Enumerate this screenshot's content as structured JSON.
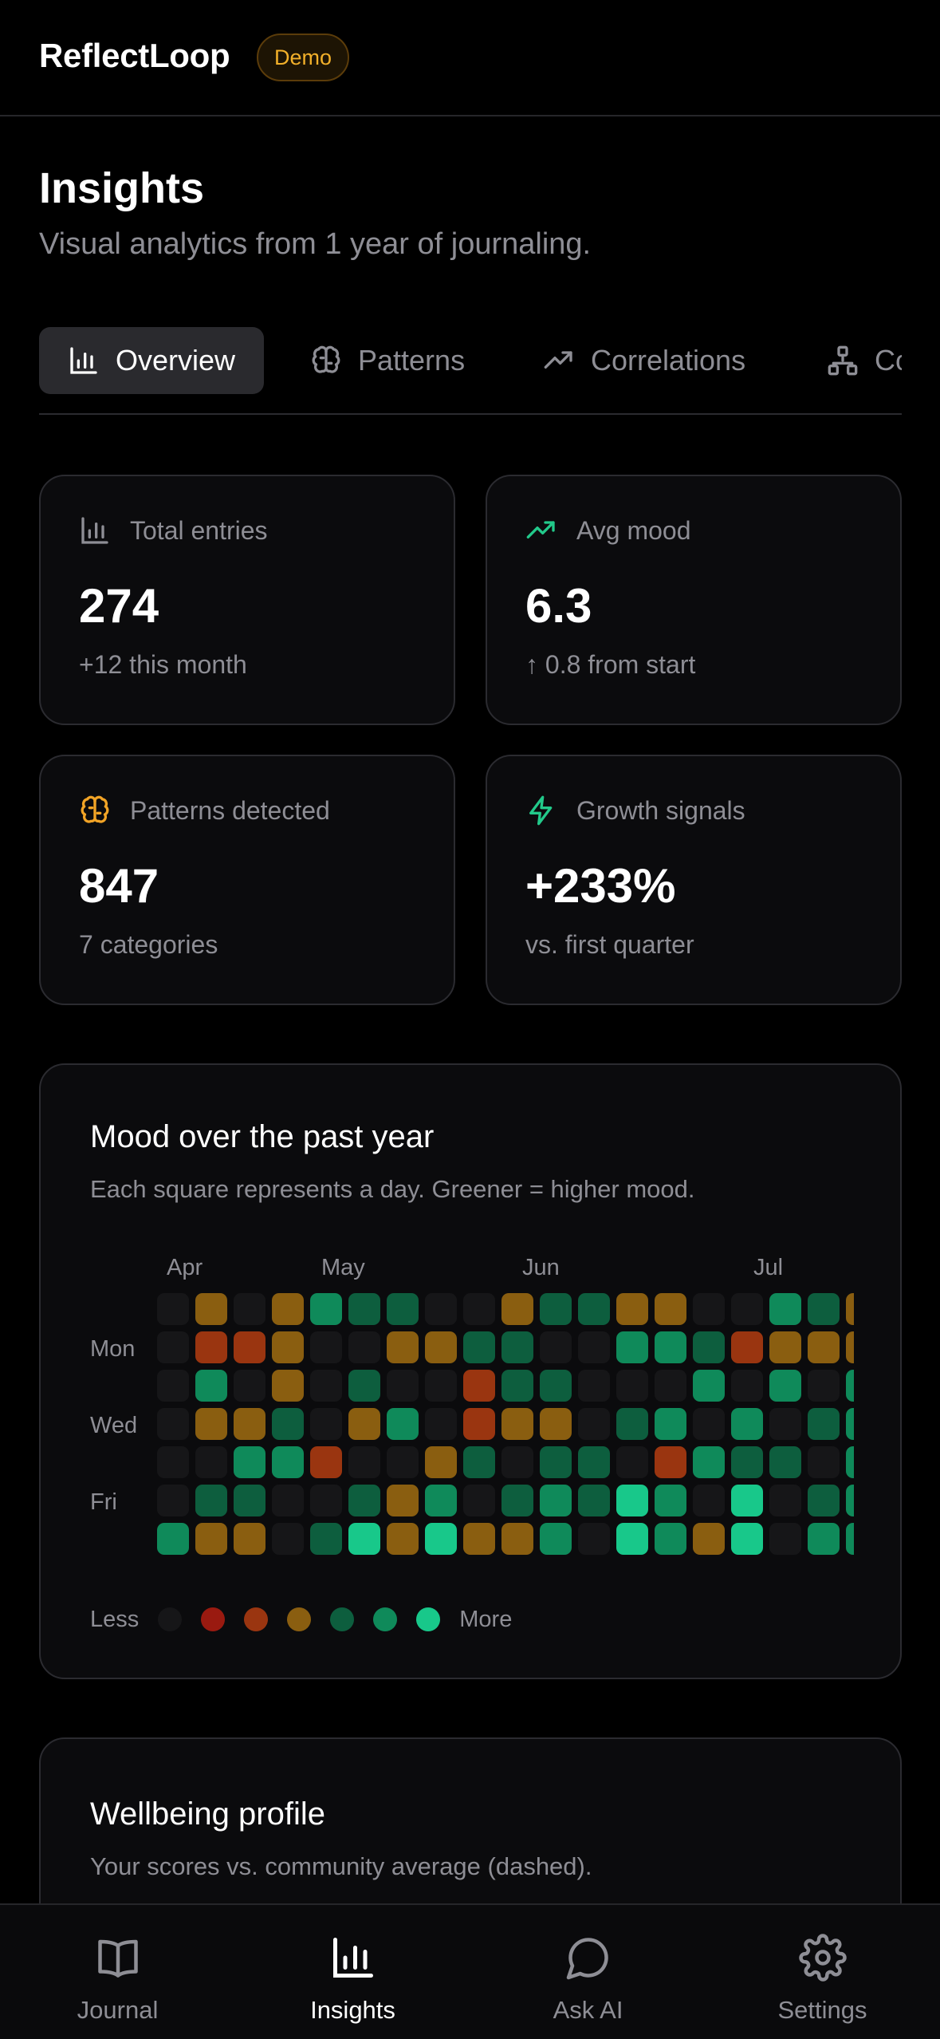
{
  "app": {
    "name": "ReflectLoop",
    "badge": "Demo"
  },
  "page": {
    "title": "Insights",
    "subtitle": "Visual analytics from 1 year of journaling."
  },
  "tabs": [
    {
      "label": "Overview",
      "icon": "bar-chart-icon",
      "active": true
    },
    {
      "label": "Patterns",
      "icon": "brain-icon",
      "active": false
    },
    {
      "label": "Correlations",
      "icon": "trending-up-icon",
      "active": false
    },
    {
      "label": "Co",
      "icon": "network-icon",
      "active": false
    }
  ],
  "stats": [
    {
      "label": "Total entries",
      "icon": "bar-chart-icon",
      "icon_color": "#8e8e95",
      "value": "274",
      "sub": "+12 this month"
    },
    {
      "label": "Avg mood",
      "icon": "trending-up-icon",
      "icon_color": "#22c98a",
      "value": "6.3",
      "sub": "↑ 0.8 from start"
    },
    {
      "label": "Patterns detected",
      "icon": "brain-icon",
      "icon_color": "#f2a426",
      "value": "847",
      "sub": "7 categories"
    },
    {
      "label": "Growth signals",
      "icon": "lightning-icon",
      "icon_color": "#22c98a",
      "value": "+233%",
      "sub": "vs. first quarter"
    }
  ],
  "heatmap": {
    "title": "Mood over the past year",
    "description": "Each square represents a day. Greener = higher mood.",
    "months": [
      "Apr",
      "May",
      "Jun",
      "Jul"
    ],
    "day_labels": [
      "Mon",
      "Wed",
      "Fri"
    ],
    "legend": {
      "less": "Less",
      "more": "More"
    },
    "palette": [
      "#161618",
      "#9a1a10",
      "#9a3510",
      "#8a5e10",
      "#0d5e3e",
      "#0f8a5a",
      "#18c88a"
    ],
    "grid": [
      [
        0,
        3,
        0,
        3,
        5,
        4,
        4,
        0,
        0,
        3,
        4,
        4,
        3,
        3,
        0,
        0,
        5,
        4,
        3
      ],
      [
        0,
        2,
        2,
        3,
        0,
        0,
        3,
        3,
        4,
        4,
        0,
        0,
        5,
        5,
        4,
        2,
        3,
        3,
        3
      ],
      [
        0,
        5,
        0,
        3,
        0,
        4,
        0,
        0,
        2,
        4,
        4,
        0,
        0,
        0,
        5,
        0,
        5,
        0,
        5
      ],
      [
        0,
        3,
        3,
        4,
        0,
        3,
        5,
        0,
        2,
        3,
        3,
        0,
        4,
        5,
        0,
        5,
        0,
        4,
        5
      ],
      [
        0,
        0,
        5,
        5,
        2,
        0,
        0,
        3,
        4,
        0,
        4,
        4,
        0,
        2,
        5,
        4,
        4,
        0,
        5
      ],
      [
        0,
        4,
        4,
        0,
        0,
        4,
        3,
        5,
        0,
        4,
        5,
        4,
        6,
        5,
        0,
        6,
        0,
        4,
        5
      ],
      [
        5,
        3,
        3,
        0,
        4,
        6,
        3,
        6,
        3,
        3,
        5,
        0,
        6,
        5,
        3,
        6,
        0,
        5,
        5
      ]
    ]
  },
  "wellbeing": {
    "title": "Wellbeing profile",
    "description": "Your scores vs. community average (dashed)."
  },
  "nav": [
    {
      "label": "Journal",
      "icon": "book-icon",
      "active": false
    },
    {
      "label": "Insights",
      "icon": "bar-chart-icon",
      "active": true
    },
    {
      "label": "Ask AI",
      "icon": "chat-bubble-icon",
      "active": false
    },
    {
      "label": "Settings",
      "icon": "gear-icon",
      "active": false
    }
  ]
}
